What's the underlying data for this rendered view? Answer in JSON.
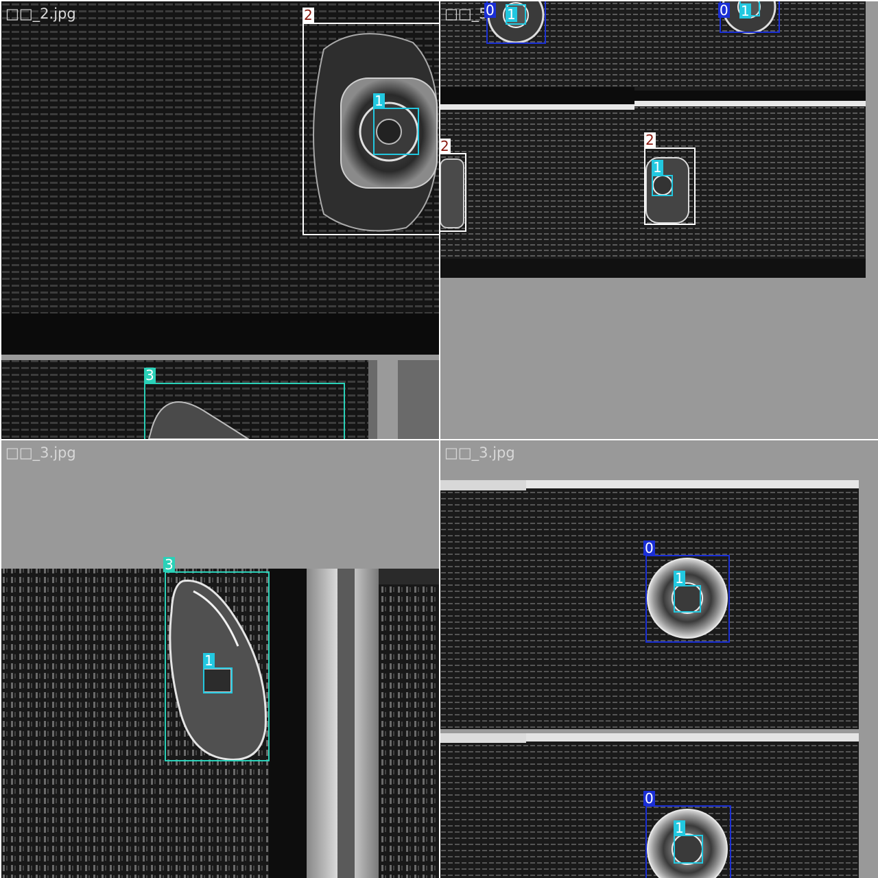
{
  "tiles": [
    {
      "filename": "□□_2.jpg",
      "detections": [
        {
          "label": "2",
          "class": 2
        },
        {
          "label": "1",
          "class": 1
        },
        {
          "label": "3",
          "class": 3
        }
      ]
    },
    {
      "filename": "□□_5",
      "detections": [
        {
          "label": "0",
          "class": 0
        },
        {
          "label": "1",
          "class": 1
        },
        {
          "label": "0",
          "class": 0
        },
        {
          "label": "1",
          "class": 1
        },
        {
          "label": "2",
          "class": 2
        },
        {
          "label": "2",
          "class": 2
        },
        {
          "label": "1",
          "class": 1
        }
      ]
    },
    {
      "filename": "□□_3.jpg",
      "detections": [
        {
          "label": "3",
          "class": 3
        },
        {
          "label": "1",
          "class": 1
        }
      ]
    },
    {
      "filename": "□□_3.jpg",
      "detections": [
        {
          "label": "0",
          "class": 0
        },
        {
          "label": "1",
          "class": 1
        },
        {
          "label": "0",
          "class": 0
        },
        {
          "label": "1",
          "class": 1
        }
      ]
    }
  ],
  "class_colors": {
    "0": "#1a2fd6",
    "1": "#22c8e0",
    "2": "#ffffff",
    "3": "#2ad1b8"
  },
  "tag_text_colors": {
    "0": "#ffffff",
    "1": "#ffffff",
    "2": "#8a1a10",
    "3": "#ffffff"
  }
}
